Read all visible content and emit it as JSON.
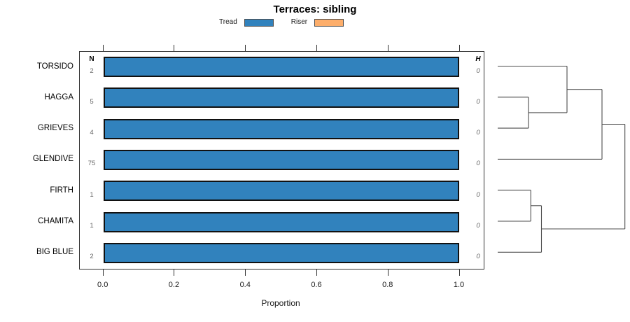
{
  "title": "Terraces: sibling",
  "legend": {
    "items": [
      {
        "label": "Tread",
        "color": "#3182bd"
      },
      {
        "label": "Riser",
        "color": "#fdae6b"
      }
    ]
  },
  "columns": {
    "n_header": "N",
    "h_header": "H"
  },
  "chart_data": {
    "type": "bar",
    "orientation": "horizontal",
    "title": "Terraces: sibling",
    "xlabel": "Proportion",
    "xlim": [
      0,
      1
    ],
    "x_ticks": [
      "0.0",
      "0.2",
      "0.4",
      "0.6",
      "0.8",
      "1.0"
    ],
    "x_tick_values": [
      0,
      0.2,
      0.4,
      0.6,
      0.8,
      1.0
    ],
    "categories": [
      "TORSIDO",
      "HAGGA",
      "GRIEVES",
      "GLENDIVE",
      "FIRTH",
      "CHAMITA",
      "BIG BLUE"
    ],
    "series": [
      {
        "name": "Tread",
        "color": "#3182bd",
        "values": [
          1.0,
          1.0,
          1.0,
          1.0,
          1.0,
          1.0,
          1.0
        ]
      },
      {
        "name": "Riser",
        "color": "#fdae6b",
        "values": [
          0,
          0,
          0,
          0,
          0,
          0,
          0
        ]
      }
    ],
    "n_values": [
      2,
      5,
      4,
      75,
      1,
      1,
      2
    ],
    "h_values": [
      0,
      0,
      0,
      0,
      0,
      0,
      0
    ],
    "legend_position": "top-center",
    "grid": false,
    "dendrogram": {
      "side": "right",
      "topology": "(((TORSIDO,(HAGGA,GRIEVES)),GLENDIVE),((FIRTH,CHAMITA),BIG BLUE))",
      "line_color": "#4d4d4d",
      "segments": [
        [
          711,
          94.5,
          810,
          94.5
        ],
        [
          711,
          138.8,
          755,
          138.8
        ],
        [
          711,
          183.1,
          755,
          183.1
        ],
        [
          711,
          227.4,
          860,
          227.4
        ],
        [
          711,
          271.7,
          758.3,
          271.7
        ],
        [
          711,
          316.0,
          758.3,
          316.0
        ],
        [
          711,
          360.3,
          773.5,
          360.3
        ],
        [
          755,
          138.8,
          755,
          183.1
        ],
        [
          755,
          160.9,
          810,
          160.9
        ],
        [
          810,
          94.5,
          810,
          160.9
        ],
        [
          810,
          127.7,
          860,
          127.7
        ],
        [
          860,
          127.7,
          860,
          227.4
        ],
        [
          860,
          177.5,
          892.7,
          177.5
        ],
        [
          758.3,
          271.7,
          758.3,
          316.0
        ],
        [
          758.3,
          293.8,
          773.5,
          293.8
        ],
        [
          773.5,
          293.8,
          773.5,
          360.3
        ],
        [
          773.5,
          327.0,
          892.7,
          327.0
        ],
        [
          892.7,
          177.5,
          892.7,
          327.0
        ]
      ]
    }
  }
}
